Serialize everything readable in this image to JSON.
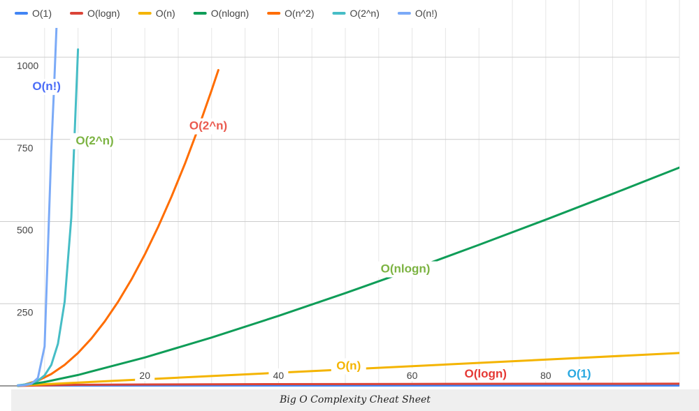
{
  "caption": "Big O Complexity Cheat Sheet",
  "chart_data": {
    "type": "line",
    "title": "",
    "xlabel": "",
    "ylabel": "",
    "xlim": [
      0,
      100
    ],
    "ylim": [
      0,
      1000
    ],
    "grid": true,
    "legend_position": "top-left",
    "x_ticks": [
      20,
      40,
      60,
      80
    ],
    "y_ticks": [
      250,
      500,
      750,
      1000
    ],
    "series": [
      {
        "name": "O(1)",
        "color": "#4285f4",
        "x": [
          1,
          100
        ],
        "y": [
          1,
          1
        ]
      },
      {
        "name": "O(logn)",
        "color": "#db4437",
        "x": [
          1,
          10,
          20,
          40,
          60,
          80,
          100
        ],
        "y": [
          0,
          3.3,
          4.3,
          5.3,
          5.9,
          6.3,
          6.6
        ]
      },
      {
        "name": "O(n)",
        "color": "#f4b400",
        "x": [
          1,
          100
        ],
        "y": [
          1,
          100
        ]
      },
      {
        "name": "O(nlogn)",
        "color": "#0f9d58",
        "x": [
          1,
          5,
          10,
          20,
          30,
          40,
          50,
          60,
          70,
          80,
          90,
          100
        ],
        "y": [
          0,
          11.6,
          33.2,
          86.4,
          147.2,
          212.9,
          282.2,
          354.4,
          429.1,
          505.8,
          584.3,
          664.4
        ]
      },
      {
        "name": "O(n^2)",
        "color": "#ff6d01",
        "x": [
          1,
          2,
          4,
          6,
          8,
          10,
          12,
          14,
          16,
          18,
          20,
          22,
          24,
          26,
          28,
          30,
          31
        ],
        "y": [
          1,
          4,
          16,
          36,
          64,
          100,
          144,
          196,
          256,
          324,
          400,
          484,
          576,
          676,
          784,
          900,
          961
        ]
      },
      {
        "name": "O(2^n)",
        "color": "#46bdc6",
        "x": [
          1,
          2,
          3,
          4,
          5,
          6,
          7,
          8,
          9,
          10
        ],
        "y": [
          2,
          4,
          8,
          16,
          32,
          64,
          128,
          256,
          512,
          1024
        ]
      },
      {
        "name": "O(n!)",
        "color": "#7baaf7",
        "x": [
          1,
          2,
          3,
          4,
          5,
          6,
          6.4,
          6.8,
          7.2
        ],
        "y": [
          1,
          2,
          6,
          24,
          120,
          720,
          900,
          1100,
          1300
        ]
      }
    ],
    "annotations": [
      {
        "text": "O(n!)",
        "color": "#4a6cf7",
        "x": 5.3,
        "y": 900
      },
      {
        "text": "O(2^n)",
        "color": "#7cb342",
        "x": 12.5,
        "y": 735
      },
      {
        "text": "O(2^n)",
        "color": "#ea5a4f",
        "x": 29.5,
        "y": 780
      },
      {
        "text": "O(nlogn)",
        "color": "#7cb342",
        "x": 59,
        "y": 345
      },
      {
        "text": "O(n)",
        "color": "#f4b400",
        "x": 50.5,
        "y": 50
      },
      {
        "text": "O(logn)",
        "color": "#e53935",
        "x": 71,
        "y": 25
      },
      {
        "text": "O(1)",
        "color": "#29a8e0",
        "x": 85,
        "y": 25
      }
    ]
  }
}
